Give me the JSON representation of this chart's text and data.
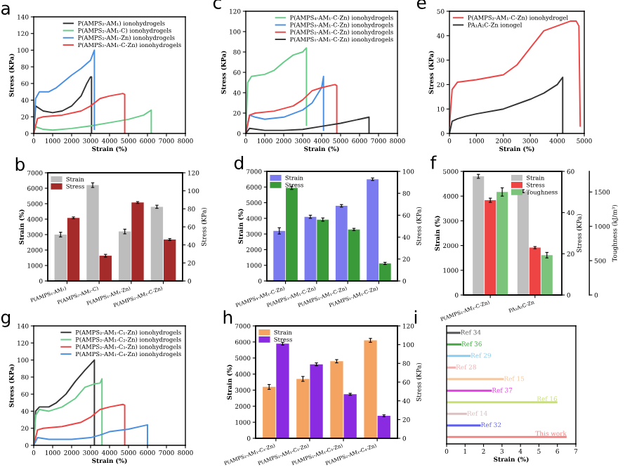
{
  "chart_data": [
    {
      "type": "line",
      "title": "a",
      "xlabel": "Strain (%)",
      "ylabel": "Stress (KPa)",
      "xlim": [
        0,
        8000
      ],
      "xticks": [
        0,
        1000,
        2000,
        3000,
        4000,
        5000,
        6000,
        7000,
        8000
      ],
      "ylim": [
        0,
        140
      ],
      "yticks": [
        0,
        20,
        40,
        60,
        80,
        100,
        120,
        140
      ],
      "legend": "top right",
      "series": [
        {
          "name": "P(AMPS₂-AM₁) ionohydrogels",
          "color": "#333333",
          "x": [
            0,
            100,
            500,
            1000,
            1500,
            2000,
            2500,
            2800,
            3000,
            3050,
            3050
          ],
          "values": [
            0,
            33,
            27,
            25,
            27,
            33,
            45,
            60,
            68,
            68,
            0
          ]
        },
        {
          "name": "P(AMPS₂-AM₁-C) ionohydrogels",
          "color": "#66cc88",
          "x": [
            0,
            100,
            500,
            1000,
            2000,
            3000,
            4000,
            5000,
            5800,
            6200,
            6200
          ],
          "values": [
            0,
            8,
            5,
            4,
            6,
            9,
            13,
            17,
            22,
            28,
            0
          ]
        },
        {
          "name": "P(AMPS₂-AM₁-Zn) ionohydrogels",
          "color": "#4a90e2",
          "x": [
            0,
            100,
            300,
            800,
            1200,
            2000,
            2500,
            3000,
            3200,
            3200
          ],
          "values": [
            0,
            42,
            50,
            50,
            55,
            70,
            78,
            88,
            100,
            5
          ]
        },
        {
          "name": "P(AMPS₂-AM₁-C-Zn) ionohydrogels",
          "color": "#ee4444",
          "x": [
            0,
            200,
            500,
            1500,
            2500,
            3000,
            3500,
            4000,
            4700,
            4800,
            4800
          ],
          "values": [
            0,
            18,
            20,
            22,
            27,
            33,
            42,
            45,
            48,
            47,
            0
          ]
        }
      ]
    },
    {
      "type": "bar",
      "title": "b",
      "ylabel": "Strain (%)",
      "y2label": "Stress (KPa)",
      "ylim": [
        0,
        7000
      ],
      "yticks": [
        0,
        1000,
        2000,
        3000,
        4000,
        5000,
        6000,
        7000
      ],
      "y2lim": [
        0,
        120
      ],
      "y2ticks": [
        0,
        20,
        40,
        60,
        80,
        100,
        120
      ],
      "legend": "top left",
      "categories": [
        "P(AMPS₂-AM₁)",
        "P(AMPS₂-AM₁-C)",
        "P(AMPS₂-AM₁-Zn)",
        "P(AMPS₂-AM₁-C-Zn)"
      ],
      "series": [
        {
          "name": "Strain",
          "color": "#bdbdbd",
          "axis": "y",
          "values": [
            3000,
            6200,
            3200,
            4800
          ],
          "errors": [
            150,
            150,
            150,
            100
          ]
        },
        {
          "name": "Stress",
          "color": "#a52a2a",
          "axis": "y2",
          "values": [
            70,
            28,
            87,
            46
          ],
          "errors": [
            1,
            1.5,
            1,
            1
          ]
        }
      ]
    },
    {
      "type": "line",
      "title": "c",
      "xlabel": "Strain (%)",
      "ylabel": "Stress (KPa)",
      "xlim": [
        0,
        8000
      ],
      "xticks": [
        0,
        1000,
        2000,
        3000,
        4000,
        5000,
        6000,
        7000,
        8000
      ],
      "ylim": [
        0,
        120
      ],
      "yticks": [
        0,
        20,
        40,
        60,
        80,
        100,
        120
      ],
      "legend": "top right",
      "series": [
        {
          "name": "P(AMPS₄-AM₁-C-Zn) ionohydrogels",
          "color": "#66cc88",
          "x": [
            0,
            100,
            300,
            1000,
            1500,
            2000,
            2500,
            3000,
            3200,
            3200
          ],
          "values": [
            0,
            50,
            56,
            58,
            62,
            70,
            77,
            80,
            84,
            8
          ]
        },
        {
          "name": "P(AMPS₃-AM₁-C-Zn) ionohydrogels",
          "color": "#4a90e2",
          "x": [
            0,
            200,
            500,
            1000,
            2000,
            3000,
            3500,
            4000,
            4100,
            4100
          ],
          "values": [
            0,
            18,
            16,
            14,
            16,
            23,
            30,
            45,
            56,
            3
          ]
        },
        {
          "name": "P(AMPS₂-AM₁-C-Zn) ionohydrogels",
          "color": "#ee4444",
          "x": [
            0,
            200,
            500,
            1500,
            2500,
            3000,
            3500,
            4000,
            4700,
            4800,
            4800
          ],
          "values": [
            0,
            18,
            20,
            22,
            27,
            33,
            42,
            45,
            48,
            47,
            0
          ]
        },
        {
          "name": "P(AMPS₁-AM₁-C-Zn) ionohydrogels",
          "color": "#333333",
          "x": [
            0,
            200,
            1000,
            2000,
            3000,
            4000,
            5000,
            6000,
            6500,
            6500
          ],
          "values": [
            0,
            5,
            3,
            3,
            4,
            7,
            10,
            14,
            16,
            0
          ]
        }
      ]
    },
    {
      "type": "bar",
      "title": "d",
      "ylabel": "Strain (%)",
      "y2label": "Stress (KPa)",
      "ylim": [
        0,
        7000
      ],
      "yticks": [
        0,
        1000,
        2000,
        3000,
        4000,
        5000,
        6000,
        7000
      ],
      "y2lim": [
        0,
        100
      ],
      "y2ticks": [
        0,
        20,
        40,
        60,
        80,
        100
      ],
      "legend": "top left",
      "categories": [
        "P(AMPS₄-AM₁-C-Zn)",
        "P(AMPS₃-AM₁-C-Zn)",
        "P(AMPS₂-AM₁-C-Zn)",
        "P(AMPS₁-AM₁-C-Zn)"
      ],
      "series": [
        {
          "name": "Strain",
          "color": "#7b7bef",
          "axis": "y",
          "values": [
            3200,
            4100,
            4800,
            6500
          ],
          "errors": [
            200,
            100,
            80,
            80
          ]
        },
        {
          "name": "Stress",
          "color": "#3a9a3a",
          "axis": "y2",
          "values": [
            85,
            56,
            47,
            16
          ],
          "errors": [
            1.5,
            1.5,
            1,
            1
          ]
        }
      ]
    },
    {
      "type": "line",
      "title": "e",
      "xlabel": "Strain (%)",
      "ylabel": "Stress (KPa)",
      "xlim": [
        0,
        5000
      ],
      "xticks": [
        0,
        1000,
        2000,
        3000,
        4000,
        5000
      ],
      "ylim": [
        0,
        50
      ],
      "yticks": [
        0,
        10,
        20,
        30,
        40,
        50
      ],
      "legend": "top left",
      "series": [
        {
          "name": "P(AMPS₂-AM₁-C-Zn) ionohydrogel",
          "color": "#ee4444",
          "x": [
            0,
            100,
            300,
            1000,
            2000,
            2500,
            3000,
            3500,
            4000,
            4500,
            4700,
            4800,
            4850
          ],
          "values": [
            3,
            18,
            21,
            22,
            24,
            28,
            35,
            42,
            44,
            46,
            46,
            44,
            3
          ]
        },
        {
          "name": "PA₁A₂C-Zn ionogel",
          "color": "#333333",
          "x": [
            0,
            100,
            300,
            600,
            1000,
            2000,
            3000,
            3500,
            4000,
            4200,
            4200
          ],
          "values": [
            0,
            5,
            6,
            7,
            8,
            10,
            14,
            16.5,
            20,
            23,
            0
          ]
        }
      ]
    },
    {
      "type": "bar",
      "title": "f",
      "ylabel": "Strain (%)",
      "y2label": "Stress (KPa)",
      "y3label": "Toughness (kJ/m³)",
      "ylim": [
        0,
        5000
      ],
      "yticks": [
        0,
        1000,
        2000,
        3000,
        4000,
        5000
      ],
      "y2lim": [
        0,
        60
      ],
      "y2ticks": [
        0,
        20,
        40,
        60
      ],
      "y3lim": [
        0,
        1800
      ],
      "y3ticks": [
        0,
        500,
        1000,
        1500
      ],
      "legend": "top right",
      "categories": [
        "P(AMPS₂-AM₁-C-Zn)",
        "PA₁A₂C-Zn"
      ],
      "series": [
        {
          "name": "Strain",
          "color": "#c0c0c0",
          "axis": "y",
          "values": [
            4800,
            4200
          ],
          "errors": [
            80,
            60
          ]
        },
        {
          "name": "Stress",
          "color": "#ee4444",
          "axis": "y2",
          "values": [
            46,
            23
          ],
          "errors": [
            1,
            0.5
          ]
        },
        {
          "name": "Toughness",
          "color": "#7cc47c",
          "axis": "y3",
          "values": [
            1500,
            580
          ],
          "errors": [
            60,
            40
          ]
        }
      ]
    },
    {
      "type": "line",
      "title": "g",
      "xlabel": "Strain (%)",
      "ylabel": "Stress (KPa)",
      "xlim": [
        0,
        8000
      ],
      "xticks": [
        0,
        1000,
        2000,
        3000,
        4000,
        5000,
        6000,
        7000,
        8000
      ],
      "ylim": [
        0,
        140
      ],
      "yticks": [
        0,
        20,
        40,
        60,
        80,
        100,
        120,
        140
      ],
      "legend": "top right",
      "series": [
        {
          "name": "P(AMPS₂-AM₁-C₁-Zn) ionohydrogels",
          "color": "#333333",
          "x": [
            0,
            100,
            300,
            800,
            1200,
            1700,
            2200,
            2700,
            3200,
            3200
          ],
          "values": [
            0,
            40,
            45,
            45,
            50,
            60,
            75,
            88,
            100,
            0
          ]
        },
        {
          "name": "P(AMPS₂-AM₁-C₂-Zn) ionohydrogels",
          "color": "#66cc88",
          "x": [
            0,
            100,
            300,
            800,
            1500,
            2200,
            2700,
            3200,
            3500,
            3600,
            3600
          ],
          "values": [
            0,
            35,
            42,
            40,
            45,
            55,
            68,
            72,
            73,
            78,
            0
          ]
        },
        {
          "name": "P(AMPS₂-AM₁-C₃-Zn) ionohydrogels",
          "color": "#ee4444",
          "x": [
            0,
            200,
            500,
            1500,
            2500,
            3000,
            3500,
            4000,
            4700,
            4800,
            4800
          ],
          "values": [
            0,
            18,
            20,
            22,
            27,
            33,
            42,
            45,
            48,
            47,
            0
          ]
        },
        {
          "name": "P(AMPS₂-AM₁-C₄-Zn) ionohydrogels",
          "color": "#4a90e2",
          "x": [
            0,
            200,
            800,
            2000,
            3000,
            3500,
            4000,
            5000,
            6000,
            6000
          ],
          "values": [
            0,
            9,
            7,
            7,
            9,
            12,
            16,
            19,
            24,
            0
          ]
        }
      ]
    },
    {
      "type": "bar",
      "title": "h",
      "ylabel": "Strain (%)",
      "y2label": "Stress (KPa)",
      "ylim": [
        0,
        7000
      ],
      "yticks": [
        0,
        1000,
        2000,
        3000,
        4000,
        5000,
        6000,
        7000
      ],
      "y2lim": [
        0,
        120
      ],
      "y2ticks": [
        0,
        20,
        40,
        60,
        80,
        100,
        120
      ],
      "legend": "top left",
      "categories": [
        "P(AMPS₂-AM₁-C₁-Zn)",
        "P(AMPS₂-AM₁-C₂-Zn)",
        "P(AMPS₂-AM₁-C₃-Zn)",
        "P(AMPS₂-AM₁-C₄-Zn)"
      ],
      "series": [
        {
          "name": "Strain",
          "color": "#f4a460",
          "axis": "y",
          "values": [
            3200,
            3700,
            4800,
            6100
          ],
          "errors": [
            150,
            150,
            100,
            120
          ]
        },
        {
          "name": "Stress",
          "color": "#8a2be2",
          "axis": "y2",
          "values": [
            101,
            79,
            47,
            24
          ],
          "errors": [
            1.5,
            1.5,
            1,
            1
          ]
        }
      ]
    },
    {
      "type": "bar",
      "orientation": "horizontal",
      "title": "i",
      "xlabel": "Strain (%)",
      "xlim": [
        0,
        7
      ],
      "xticks": [
        0,
        1,
        2,
        3,
        4,
        5,
        6,
        7
      ],
      "tick_labels": "x",
      "categories": [
        "Ref 34",
        "Ref 36",
        "Ref 29",
        "Ref 28",
        "Ref 15",
        "Ref 37",
        "Ref 16",
        "Ref 14",
        "Ref 32",
        "This work"
      ],
      "values": [
        0.75,
        0.8,
        1.3,
        0.5,
        3.1,
        2.45,
        6.0,
        1.1,
        1.85,
        6.5
      ],
      "colors": [
        "#555555",
        "#44aa44",
        "#88ccf0",
        "#f0b0b0",
        "#f5c8a0",
        "#e040e0",
        "#c8e070",
        "#d8c0c0",
        "#6060f0",
        "#f08080"
      ]
    }
  ]
}
